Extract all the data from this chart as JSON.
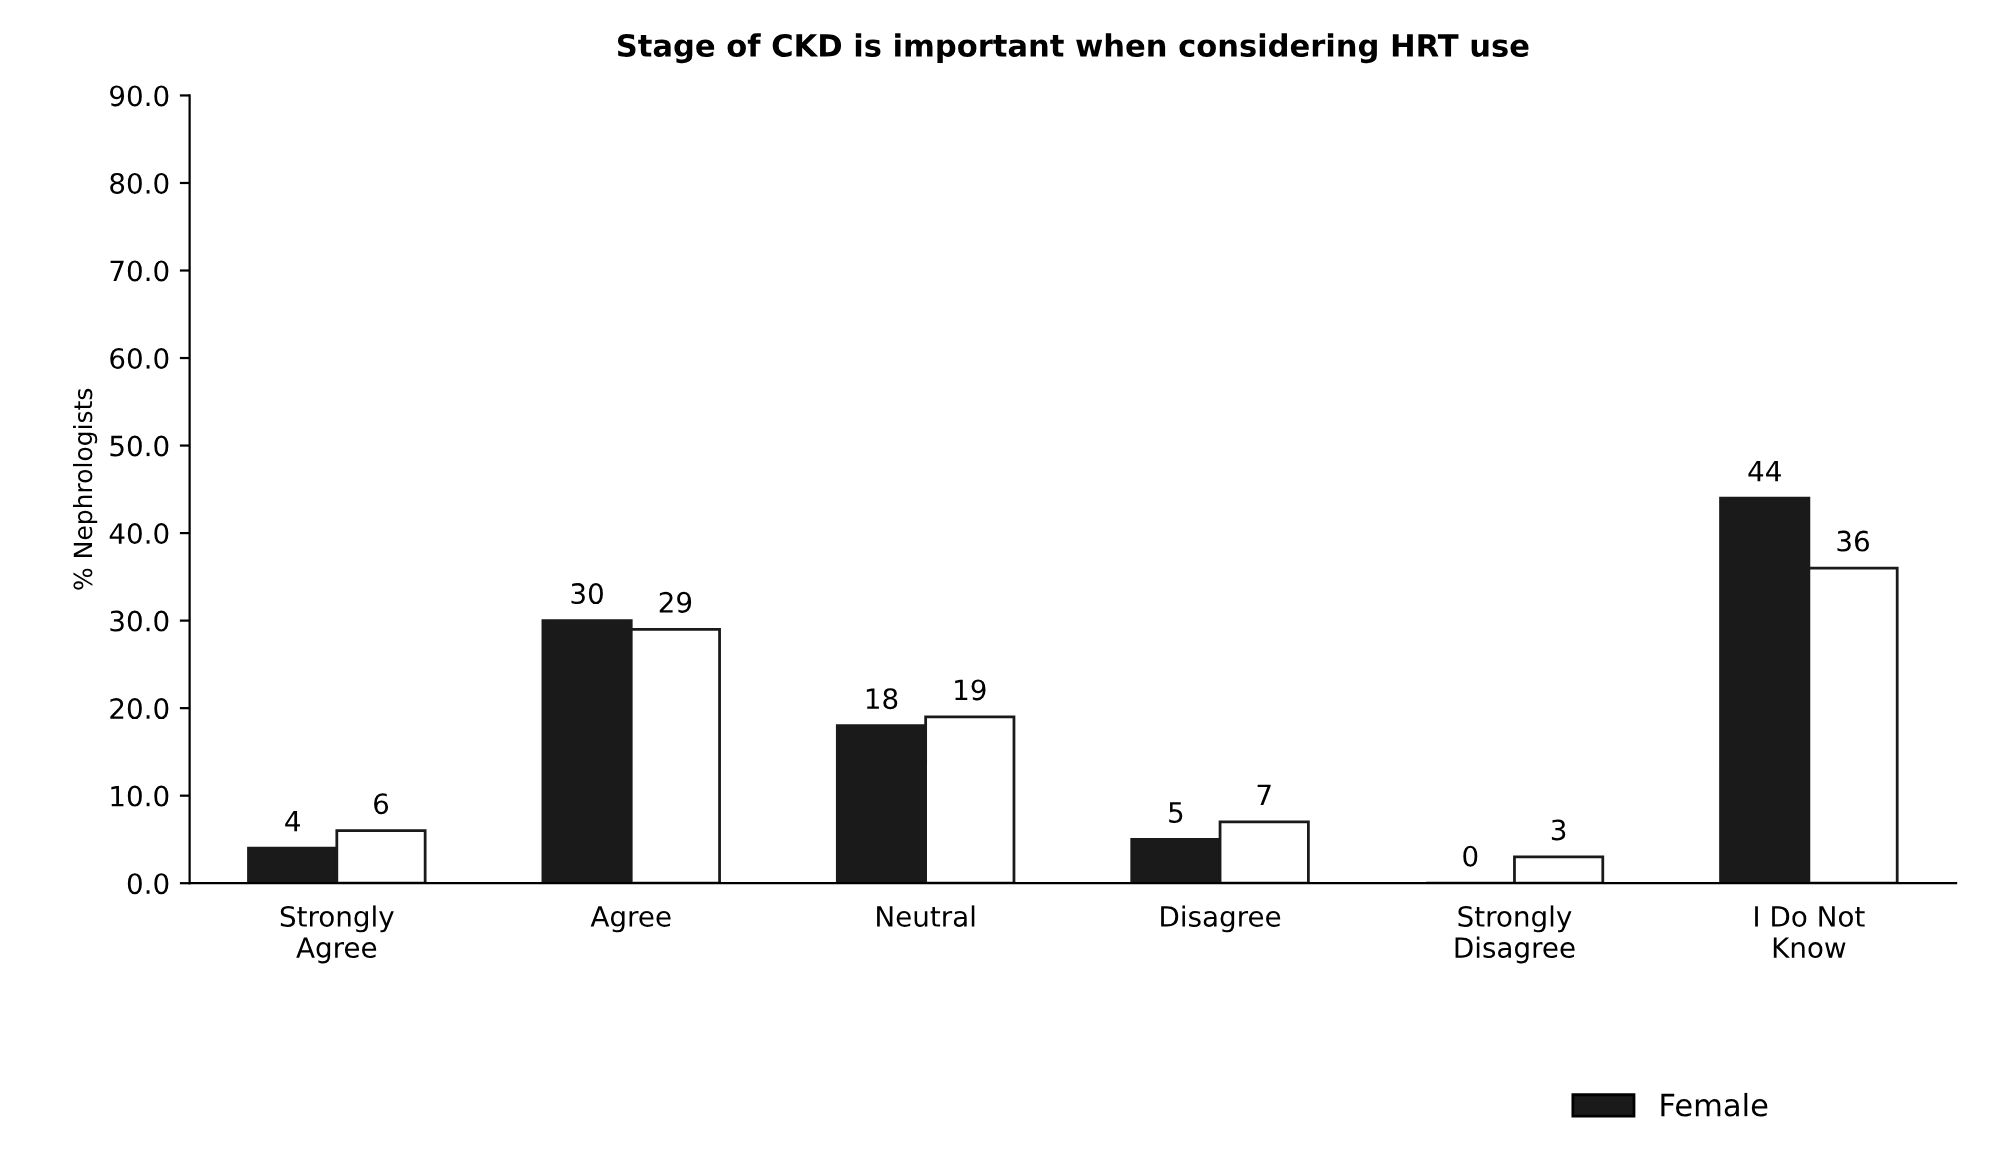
{
  "chart_data": {
    "type": "bar",
    "title": "Stage of CKD is important when considering HRT use",
    "ylabel": "% Nephrologists",
    "categories": [
      "Strongly\nAgree",
      "Agree",
      "Neutral",
      "Disagree",
      "Strongly\nDisagree",
      "I Do Not\nKnow"
    ],
    "series": [
      {
        "name": "Female",
        "color": "#1a1a1a",
        "values": [
          4,
          30,
          18,
          5,
          0,
          44
        ]
      },
      {
        "color": "#ffffff",
        "values": [
          6,
          29,
          19,
          7,
          3,
          36
        ]
      }
    ],
    "ylim": [
      0,
      90
    ],
    "yticks": [
      {
        "value": 0,
        "label": "0.0"
      },
      {
        "value": 10,
        "label": "10.0"
      },
      {
        "value": 20,
        "label": "20.0"
      },
      {
        "value": 30,
        "label": "30.0"
      },
      {
        "value": 40,
        "label": "40.0"
      },
      {
        "value": 50,
        "label": "50.0"
      },
      {
        "value": 60,
        "label": "60.0"
      },
      {
        "value": 70,
        "label": "70.0"
      },
      {
        "value": 80,
        "label": "80.0"
      },
      {
        "value": 90,
        "label": "90.0"
      }
    ],
    "data_labels": true,
    "grid": false,
    "legend": "bottom right"
  }
}
